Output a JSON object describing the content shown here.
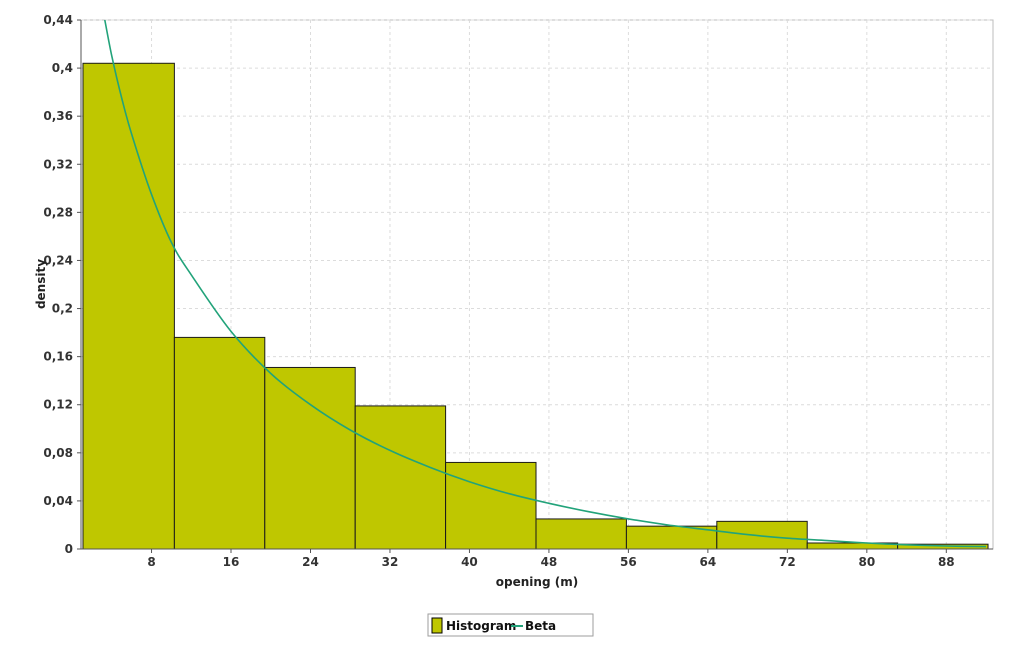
{
  "chart_data": {
    "type": "bar",
    "title": "",
    "xlabel": "opening (m)",
    "ylabel": "density",
    "xlim": [
      0.9,
      92.7
    ],
    "ylim": [
      0,
      0.44
    ],
    "x_ticks": [
      8,
      16,
      24,
      32,
      40,
      48,
      56,
      64,
      72,
      80,
      88
    ],
    "x_tick_labels": [
      "8",
      "16",
      "24",
      "32",
      "40",
      "48",
      "56",
      "64",
      "72",
      "80",
      "88"
    ],
    "y_ticks": [
      0,
      0.04,
      0.08,
      0.12,
      0.16,
      0.2,
      0.24,
      0.28,
      0.32,
      0.36,
      0.4,
      0.44
    ],
    "y_tick_labels": [
      "0",
      "0,04",
      "0,08",
      "0,12",
      "0,16",
      "0,2",
      "0,24",
      "0,28",
      "0,32",
      "0,36",
      "0,4",
      "0,44"
    ],
    "grid": true,
    "legend_position": "bottom-center",
    "bins": [
      {
        "x0": 1.1,
        "x1": 10.3,
        "value": 0.404
      },
      {
        "x0": 10.3,
        "x1": 19.4,
        "value": 0.176
      },
      {
        "x0": 19.4,
        "x1": 28.5,
        "value": 0.151
      },
      {
        "x0": 28.5,
        "x1": 37.6,
        "value": 0.119
      },
      {
        "x0": 37.6,
        "x1": 46.7,
        "value": 0.072
      },
      {
        "x0": 46.7,
        "x1": 55.8,
        "value": 0.025
      },
      {
        "x0": 55.8,
        "x1": 64.9,
        "value": 0.019
      },
      {
        "x0": 64.9,
        "x1": 74.0,
        "value": 0.023
      },
      {
        "x0": 74.0,
        "x1": 83.1,
        "value": 0.005
      },
      {
        "x0": 83.1,
        "x1": 92.2,
        "value": 0.004
      }
    ],
    "series": [
      {
        "name": "Histogram",
        "type": "bar",
        "color": "#bfc700"
      },
      {
        "name": "Beta",
        "type": "line",
        "color": "#22a37a",
        "x": [
          3.3,
          4.0,
          5.0,
          6.0,
          8.0,
          10.0,
          12.0,
          16.0,
          20.0,
          24.0,
          28.0,
          32.0,
          36.0,
          40.0,
          44.0,
          48.0,
          52.0,
          56.0,
          60.0,
          64.0,
          68.0,
          72.0,
          76.0,
          80.0,
          84.0,
          88.0,
          92.0
        ],
        "y": [
          0.44,
          0.41,
          0.375,
          0.345,
          0.295,
          0.255,
          0.228,
          0.181,
          0.146,
          0.12,
          0.099,
          0.082,
          0.068,
          0.056,
          0.046,
          0.038,
          0.031,
          0.025,
          0.02,
          0.016,
          0.012,
          0.009,
          0.007,
          0.005,
          0.0035,
          0.0025,
          0.002
        ]
      }
    ]
  }
}
